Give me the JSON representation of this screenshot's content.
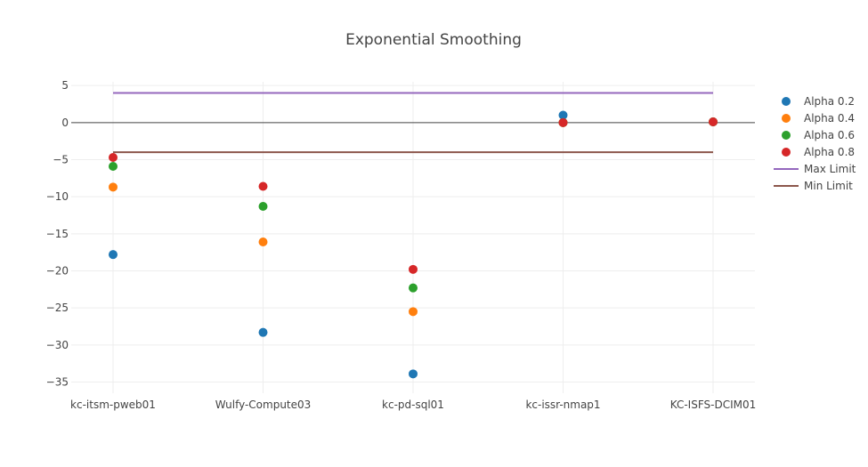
{
  "chart_data": {
    "type": "scatter",
    "title": "Exponential Smoothing",
    "xlabel": "",
    "ylabel": "",
    "categories": [
      "kc-itsm-pweb01",
      "Wulfy-Compute03",
      "kc-pd-sql01",
      "kc-issr-nmap1",
      "KC-ISFS-DCIM01"
    ],
    "ylim": [
      -36.5,
      5.5
    ],
    "yticks": [
      5,
      0,
      -5,
      -10,
      -15,
      -20,
      -25,
      -30,
      -35
    ],
    "ytick_labels": [
      "5",
      "0",
      "−5",
      "−10",
      "−15",
      "−20",
      "−25",
      "−30",
      "−35"
    ],
    "grid": true,
    "legend_position": "top-right",
    "series": [
      {
        "name": "Alpha 0.2",
        "mode": "markers",
        "color": "#1f77b4",
        "values": [
          -17.8,
          -28.3,
          -33.9,
          1.0,
          0.1
        ]
      },
      {
        "name": "Alpha 0.4",
        "mode": "markers",
        "color": "#ff7f0e",
        "values": [
          -8.7,
          -16.1,
          -25.5,
          0.0,
          0.1
        ]
      },
      {
        "name": "Alpha 0.6",
        "mode": "markers",
        "color": "#2ca02c",
        "values": [
          -5.9,
          -11.3,
          -22.3,
          0.0,
          0.1
        ]
      },
      {
        "name": "Alpha 0.8",
        "mode": "markers",
        "color": "#d62728",
        "values": [
          -4.7,
          -8.6,
          -19.8,
          0.0,
          0.1
        ]
      },
      {
        "name": "Max Limit",
        "mode": "line",
        "color": "#9467bd",
        "values": [
          4,
          4,
          4,
          4,
          4
        ]
      },
      {
        "name": "Min Limit",
        "mode": "line",
        "color": "#8c564b",
        "values": [
          -4,
          -4,
          -4,
          -4,
          -4
        ]
      }
    ]
  }
}
